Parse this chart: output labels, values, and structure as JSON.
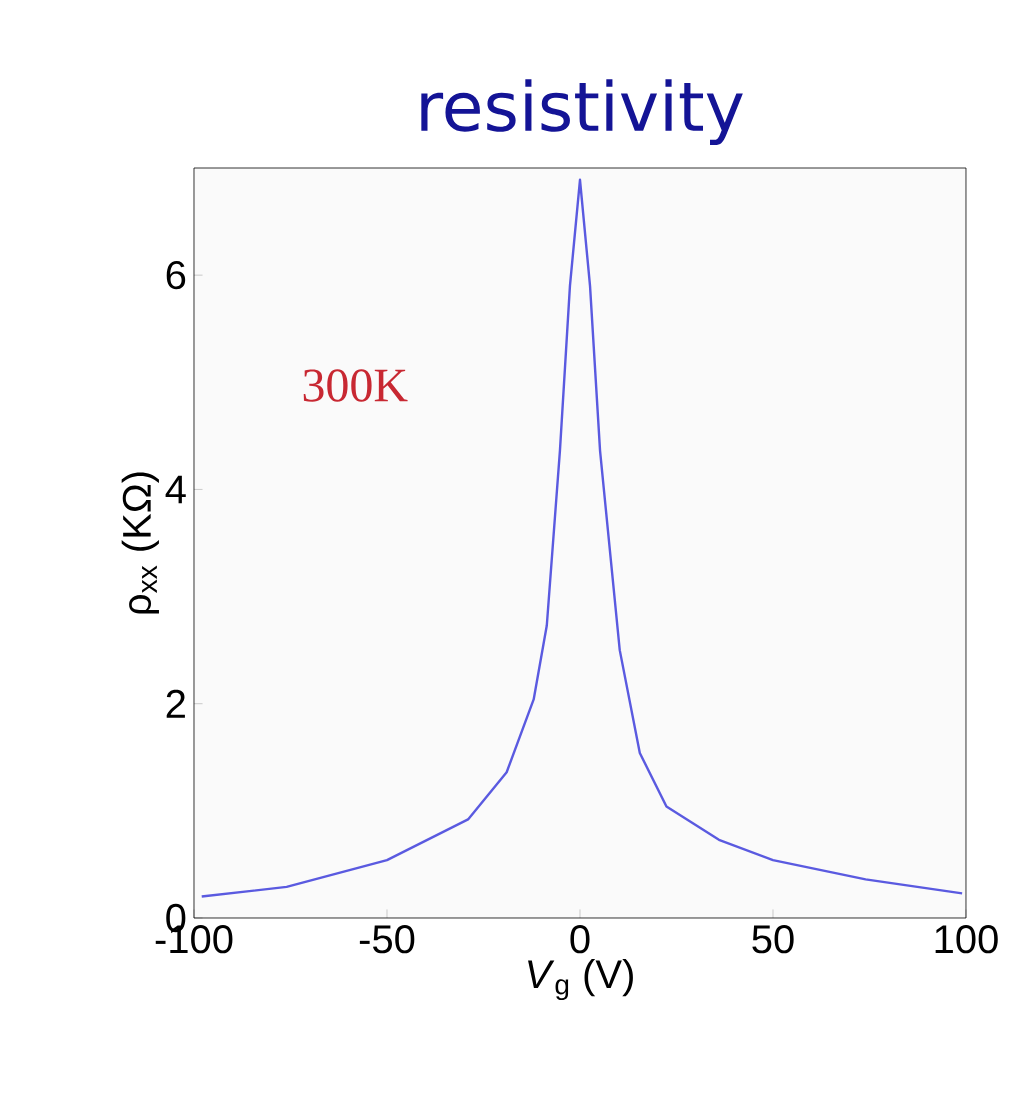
{
  "chart_data": {
    "type": "line",
    "title": "resistivity",
    "xlabel": "*V*$_{g}$ (V)",
    "ylabel": "ρ$_{xx}$ (KΩ)",
    "annotations": [
      "300K"
    ],
    "x": [
      -98,
      -76,
      -50,
      -29,
      -19,
      -12,
      -8.6,
      -5.2,
      -2.6,
      0,
      2.6,
      5.2,
      10.3,
      15.5,
      22.4,
      36,
      50,
      74,
      99
    ],
    "series": [
      {
        "color": "#5a5ae0",
        "values": [
          0.2,
          0.29,
          0.54,
          0.92,
          1.36,
          2.04,
          2.73,
          4.36,
          5.9,
          6.89,
          5.9,
          4.36,
          2.5,
          1.54,
          1.04,
          0.73,
          0.54,
          0.36,
          0.23
        ]
      }
    ],
    "xlim": [
      -100,
      100
    ],
    "ylim": [
      0,
      7
    ],
    "xticks": [
      -100,
      -50,
      0,
      50,
      100
    ],
    "yticks": [
      0,
      2,
      4,
      6
    ],
    "grid": false,
    "marker": "none",
    "line_style": "solid"
  }
}
